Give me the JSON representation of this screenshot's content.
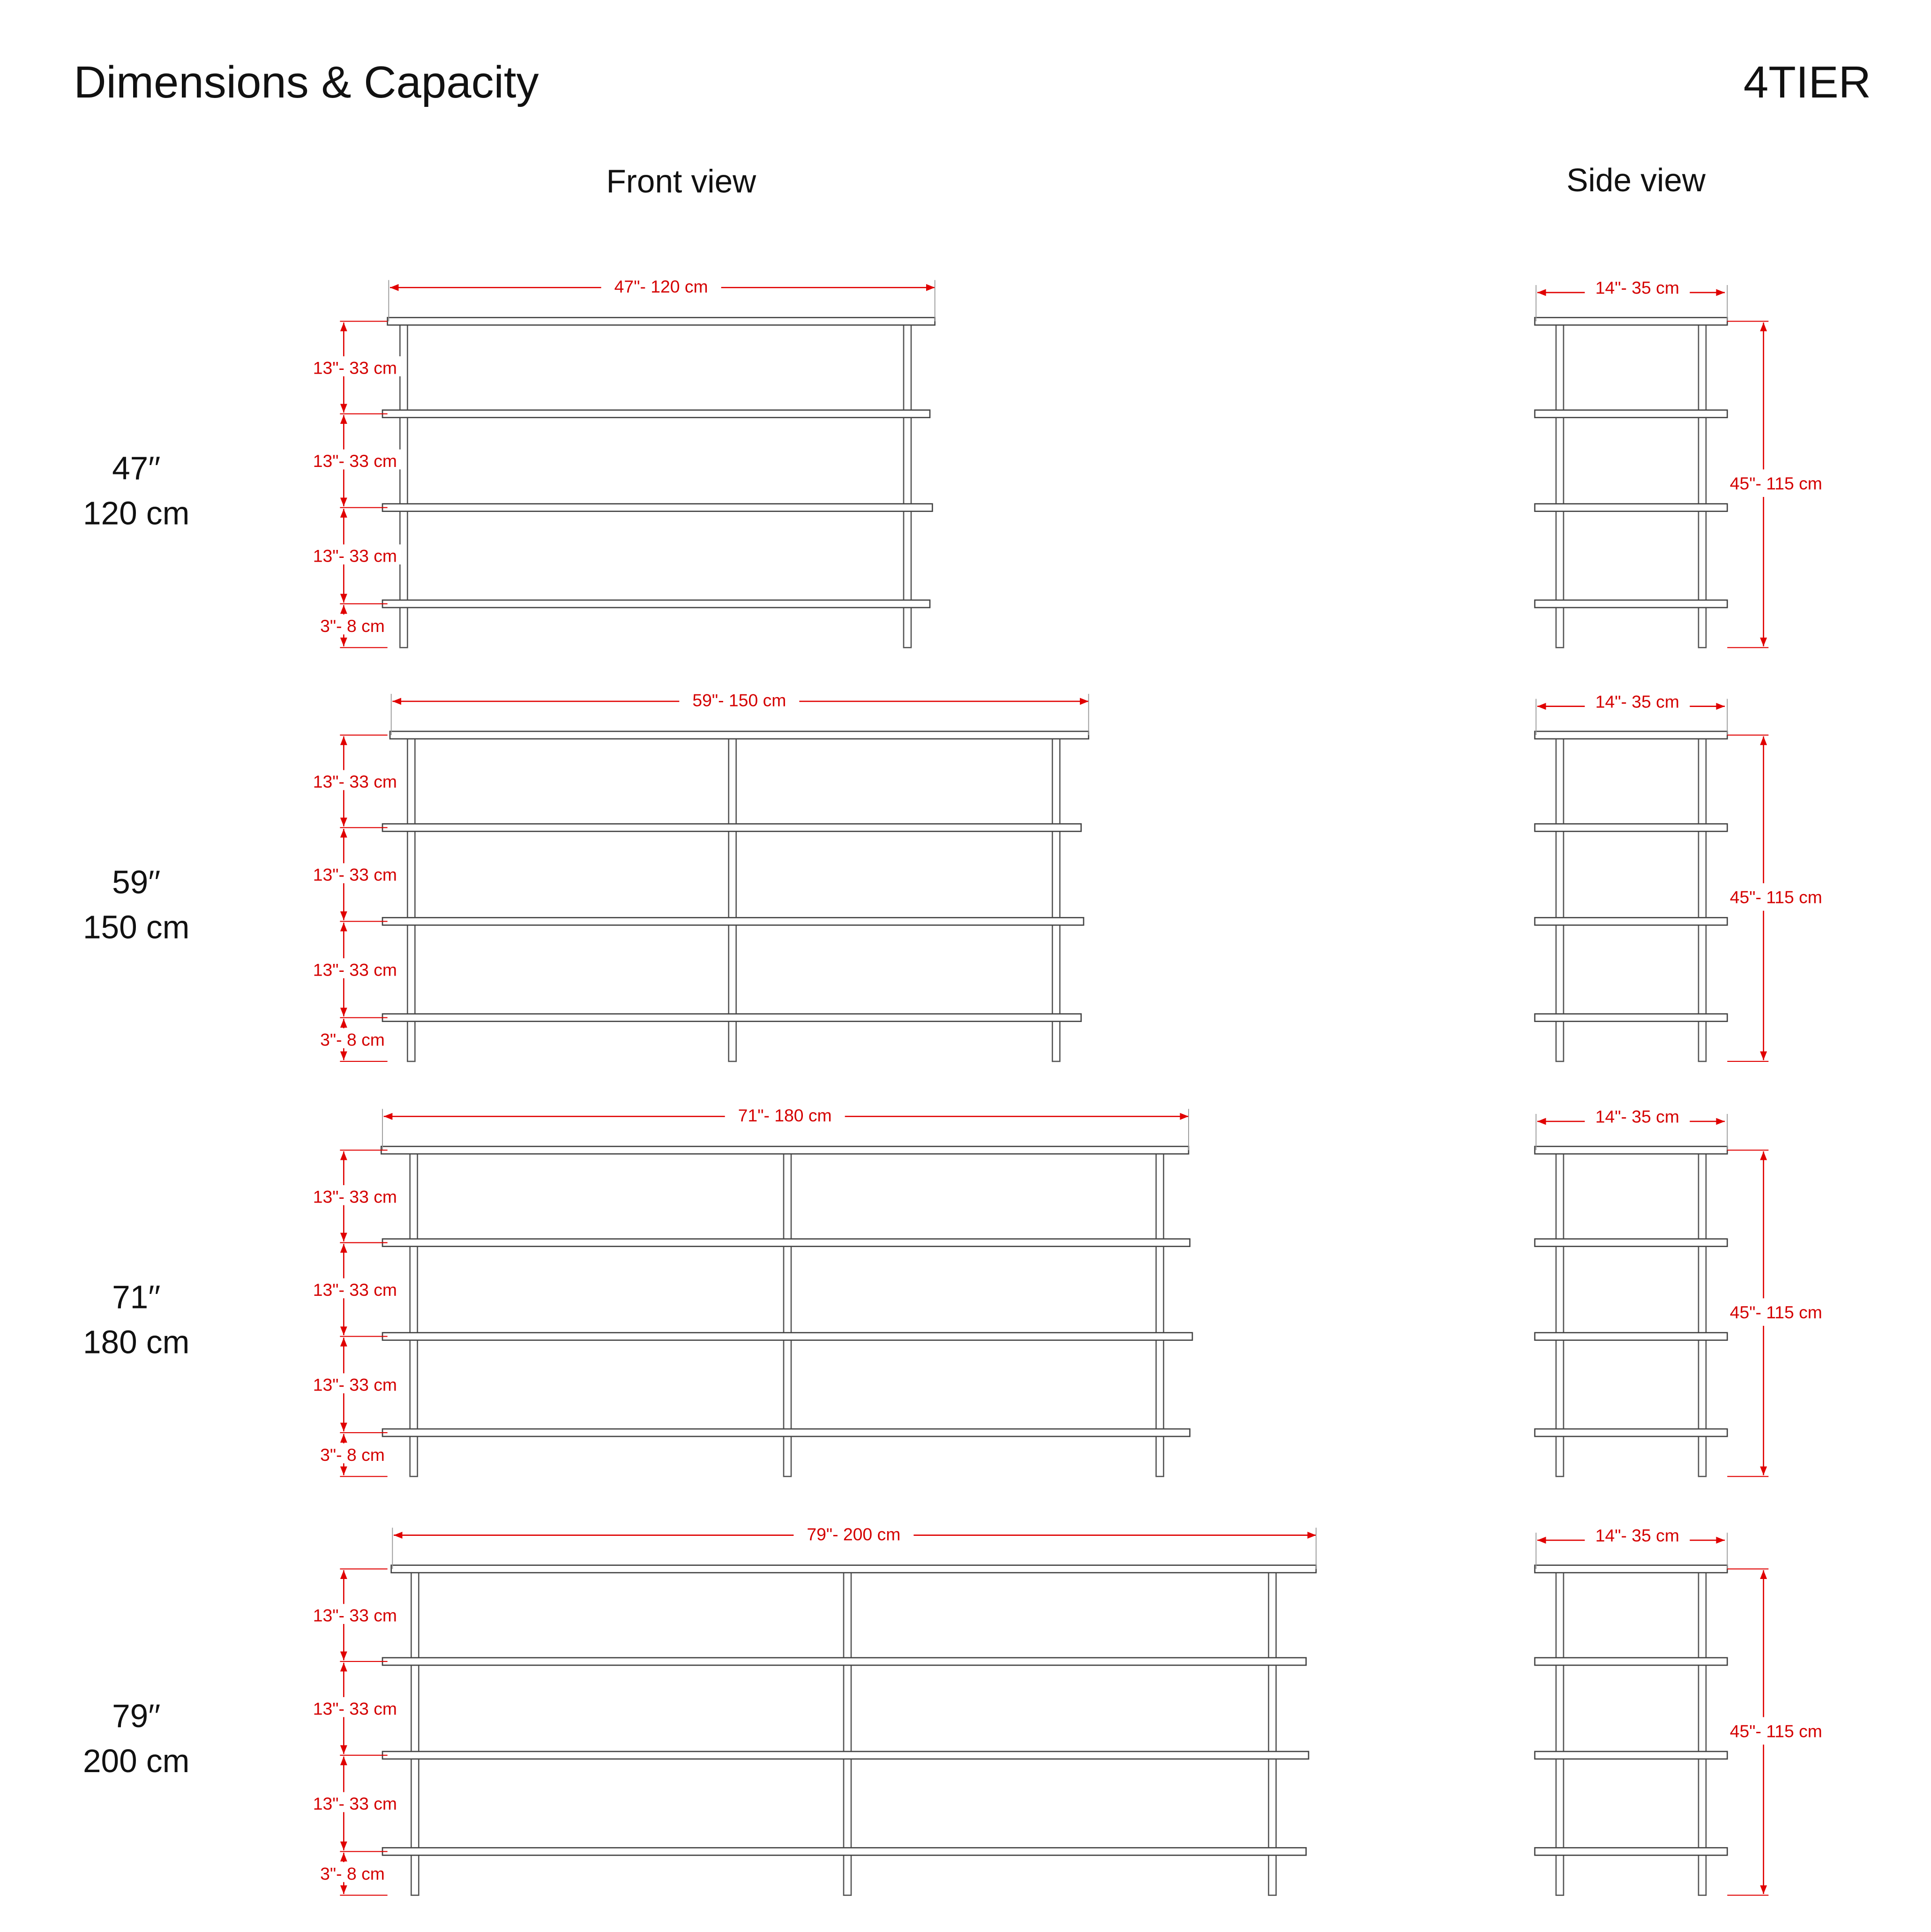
{
  "header": {
    "title": "Dimensions & Capacity",
    "brand": "4TIER"
  },
  "views": {
    "front": "Front view",
    "side": "Side view"
  },
  "rows": [
    {
      "size_in": "47′′",
      "size_cm": "120 cm",
      "width": "47\"- 120 cm",
      "tiers": [
        "13\"- 33 cm",
        "13\"- 33 cm",
        "13\"- 33 cm"
      ],
      "foot": "3\"- 8 cm",
      "depth": "14\"- 35 cm",
      "height": "45\"- 115 cm"
    },
    {
      "size_in": "59′′",
      "size_cm": "150 cm",
      "width": "59\"- 150 cm",
      "tiers": [
        "13\"- 33 cm",
        "13\"- 33 cm",
        "13\"- 33 cm"
      ],
      "foot": "3\"- 8 cm",
      "depth": "14\"- 35 cm",
      "height": "45\"- 115 cm"
    },
    {
      "size_in": "71′′",
      "size_cm": "180 cm",
      "width": "71\"- 180 cm",
      "tiers": [
        "13\"- 33 cm",
        "13\"- 33 cm",
        "13\"- 33 cm"
      ],
      "foot": "3\"- 8 cm",
      "depth": "14\"- 35 cm",
      "height": "45\"- 115 cm"
    },
    {
      "size_in": "79′′",
      "size_cm": "200 cm",
      "width": "79\"- 200 cm",
      "tiers": [
        "13\"- 33 cm",
        "13\"- 33 cm",
        "13\"- 33 cm"
      ],
      "foot": "3\"- 8 cm",
      "depth": "14\"- 35 cm",
      "height": "45\"- 115 cm"
    }
  ]
}
